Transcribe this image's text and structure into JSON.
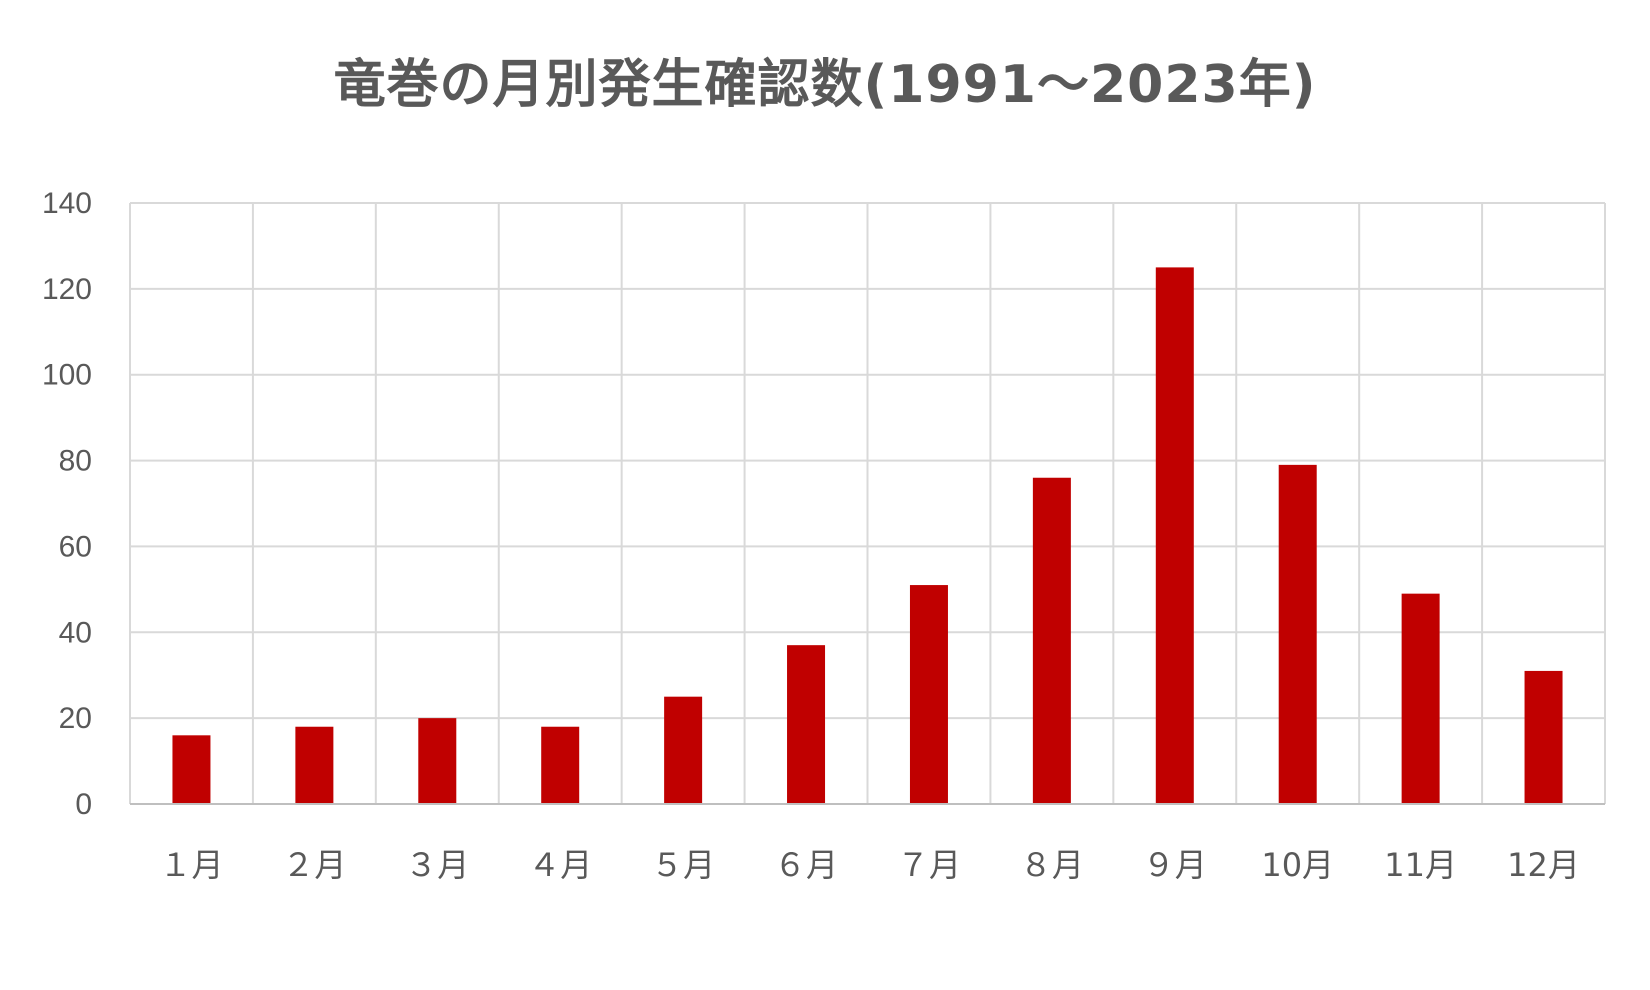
{
  "chart_data": {
    "type": "bar",
    "title": "竜巻の月別発生確認数(1991～2023年)",
    "xlabel": "",
    "ylabel": "",
    "categories": [
      "１月",
      "２月",
      "３月",
      "４月",
      "５月",
      "６月",
      "７月",
      "８月",
      "９月",
      "10月",
      "11月",
      "12月"
    ],
    "values": [
      16,
      18,
      20,
      18,
      25,
      37,
      51,
      76,
      125,
      79,
      49,
      31
    ],
    "ylim": [
      0,
      140
    ],
    "yticks": [
      0,
      20,
      40,
      60,
      80,
      100,
      120,
      140
    ],
    "grid": true,
    "bar_color": "#C00000",
    "grid_color": "#D9D9D9",
    "text_color": "#595959"
  }
}
